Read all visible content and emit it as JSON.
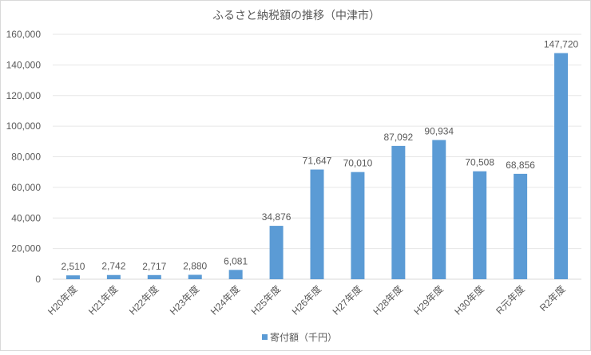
{
  "chart_data": {
    "type": "bar",
    "title": "ふるさと納税額の推移（中津市）",
    "categories": [
      "H20年度",
      "H21年度",
      "H22年度",
      "H23年度",
      "H24年度",
      "H25年度",
      "H26年度",
      "H27年度",
      "H28年度",
      "H29年度",
      "H30年度",
      "R元年度",
      "R2年度"
    ],
    "series": [
      {
        "name": "寄付額（千円）",
        "values": [
          2510,
          2742,
          2717,
          2880,
          6081,
          34876,
          71647,
          70010,
          87092,
          90934,
          70508,
          68856,
          147720
        ],
        "color": "#5b9bd5"
      }
    ],
    "data_labels": [
      "2,510",
      "2,742",
      "2,717",
      "2,880",
      "6,081",
      "34,876",
      "71,647",
      "70,010",
      "87,092",
      "90,934",
      "70,508",
      "68,856",
      "147,720"
    ],
    "yticks": [
      "0",
      "20,000",
      "40,000",
      "60,000",
      "80,000",
      "100,000",
      "120,000",
      "140,000",
      "160,000"
    ],
    "ylim": [
      0,
      160000
    ],
    "xlabel": "",
    "ylabel": "",
    "grid": true,
    "legend_position": "bottom"
  }
}
